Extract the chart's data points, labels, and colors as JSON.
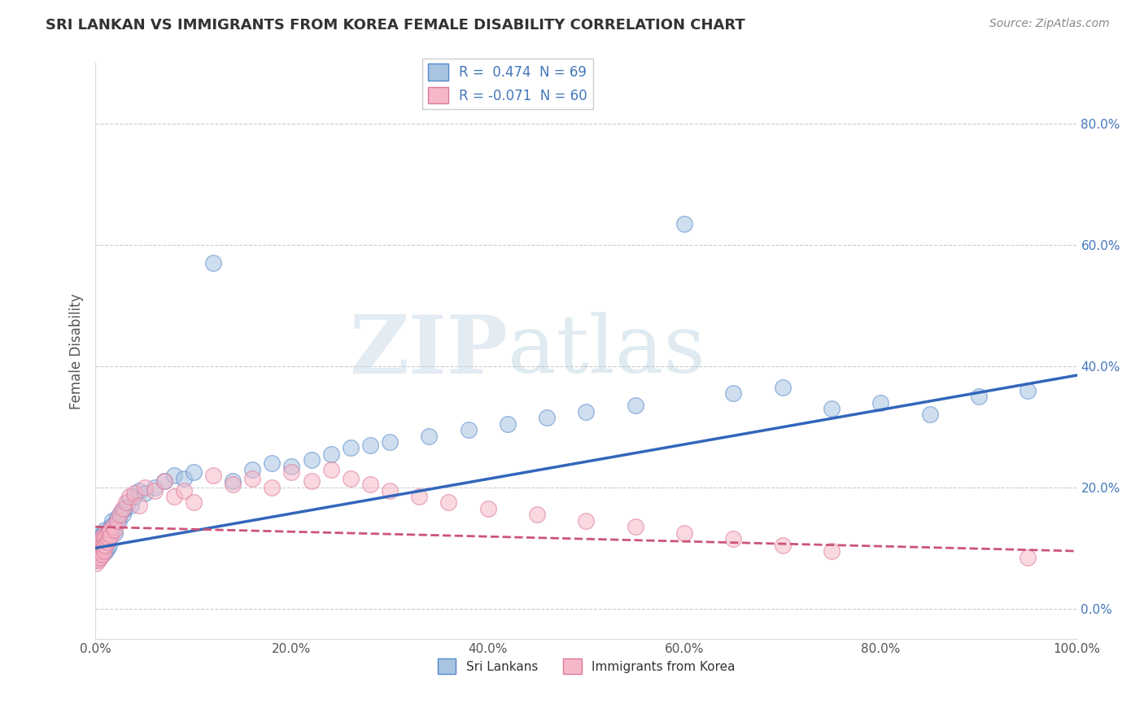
{
  "title": "SRI LANKAN VS IMMIGRANTS FROM KOREA FEMALE DISABILITY CORRELATION CHART",
  "source": "Source: ZipAtlas.com",
  "ylabel": "Female Disability",
  "xlim": [
    0,
    1.0
  ],
  "ylim": [
    -0.05,
    0.9
  ],
  "xticks": [
    0.0,
    0.2,
    0.4,
    0.6,
    0.8,
    1.0
  ],
  "xtick_labels": [
    "0.0%",
    "20.0%",
    "40.0%",
    "60.0%",
    "80.0%",
    "100.0%"
  ],
  "yticks": [
    0.0,
    0.2,
    0.4,
    0.6,
    0.8
  ],
  "ytick_labels": [
    "0.0%",
    "20.0%",
    "40.0%",
    "60.0%",
    "80.0%"
  ],
  "grid_color": "#cccccc",
  "background_color": "#ffffff",
  "series1_label": "Sri Lankans",
  "series1_color": "#a8c4e0",
  "series1_edge_color": "#5588cc",
  "series1_line_color": "#3366bb",
  "series1_R": 0.474,
  "series1_N": 69,
  "series2_label": "Immigrants from Korea",
  "series2_color": "#f5b8c8",
  "series2_edge_color": "#dd7799",
  "series2_line_color": "#cc5577",
  "series2_R": -0.071,
  "series2_N": 60,
  "watermark_zip": "ZIP",
  "watermark_atlas": "atlas",
  "title_fontsize": 13,
  "tick_fontsize": 11,
  "blue_line_x0": 0.0,
  "blue_line_y0": 0.1,
  "blue_line_x1": 1.0,
  "blue_line_y1": 0.385,
  "pink_line_x0": 0.0,
  "pink_line_y0": 0.135,
  "pink_line_x1": 1.0,
  "pink_line_y1": 0.095,
  "series1_x": [
    0.001,
    0.002,
    0.002,
    0.003,
    0.003,
    0.004,
    0.004,
    0.005,
    0.005,
    0.006,
    0.006,
    0.007,
    0.007,
    0.008,
    0.008,
    0.009,
    0.009,
    0.01,
    0.01,
    0.011,
    0.011,
    0.012,
    0.013,
    0.014,
    0.015,
    0.016,
    0.017,
    0.018,
    0.019,
    0.02,
    0.022,
    0.024,
    0.026,
    0.028,
    0.03,
    0.033,
    0.036,
    0.04,
    0.045,
    0.05,
    0.06,
    0.07,
    0.08,
    0.09,
    0.1,
    0.12,
    0.14,
    0.16,
    0.18,
    0.2,
    0.22,
    0.24,
    0.26,
    0.28,
    0.3,
    0.34,
    0.38,
    0.42,
    0.46,
    0.5,
    0.55,
    0.6,
    0.65,
    0.7,
    0.75,
    0.8,
    0.85,
    0.9,
    0.95
  ],
  "series1_y": [
    0.08,
    0.09,
    0.1,
    0.095,
    0.11,
    0.085,
    0.105,
    0.095,
    0.115,
    0.1,
    0.12,
    0.09,
    0.11,
    0.1,
    0.125,
    0.105,
    0.115,
    0.11,
    0.13,
    0.095,
    0.12,
    0.1,
    0.115,
    0.105,
    0.125,
    0.135,
    0.145,
    0.13,
    0.14,
    0.125,
    0.15,
    0.145,
    0.16,
    0.155,
    0.165,
    0.175,
    0.17,
    0.185,
    0.195,
    0.19,
    0.2,
    0.21,
    0.22,
    0.215,
    0.225,
    0.57,
    0.21,
    0.23,
    0.24,
    0.235,
    0.245,
    0.255,
    0.265,
    0.27,
    0.275,
    0.285,
    0.295,
    0.305,
    0.315,
    0.325,
    0.335,
    0.635,
    0.355,
    0.365,
    0.33,
    0.34,
    0.32,
    0.35,
    0.36
  ],
  "series2_x": [
    0.001,
    0.002,
    0.002,
    0.003,
    0.003,
    0.004,
    0.004,
    0.005,
    0.005,
    0.006,
    0.006,
    0.007,
    0.007,
    0.008,
    0.008,
    0.009,
    0.009,
    0.01,
    0.011,
    0.012,
    0.013,
    0.014,
    0.015,
    0.016,
    0.018,
    0.02,
    0.022,
    0.025,
    0.028,
    0.031,
    0.035,
    0.04,
    0.045,
    0.05,
    0.06,
    0.07,
    0.08,
    0.09,
    0.1,
    0.12,
    0.14,
    0.16,
    0.18,
    0.2,
    0.22,
    0.24,
    0.26,
    0.28,
    0.3,
    0.33,
    0.36,
    0.4,
    0.45,
    0.5,
    0.55,
    0.6,
    0.65,
    0.7,
    0.75,
    0.95
  ],
  "series2_y": [
    0.075,
    0.085,
    0.095,
    0.08,
    0.1,
    0.09,
    0.105,
    0.085,
    0.11,
    0.095,
    0.115,
    0.09,
    0.105,
    0.1,
    0.12,
    0.095,
    0.115,
    0.105,
    0.12,
    0.11,
    0.125,
    0.115,
    0.13,
    0.12,
    0.135,
    0.13,
    0.145,
    0.155,
    0.165,
    0.175,
    0.185,
    0.19,
    0.17,
    0.2,
    0.195,
    0.21,
    0.185,
    0.195,
    0.175,
    0.22,
    0.205,
    0.215,
    0.2,
    0.225,
    0.21,
    0.23,
    0.215,
    0.205,
    0.195,
    0.185,
    0.175,
    0.165,
    0.155,
    0.145,
    0.135,
    0.125,
    0.115,
    0.105,
    0.095,
    0.085
  ]
}
